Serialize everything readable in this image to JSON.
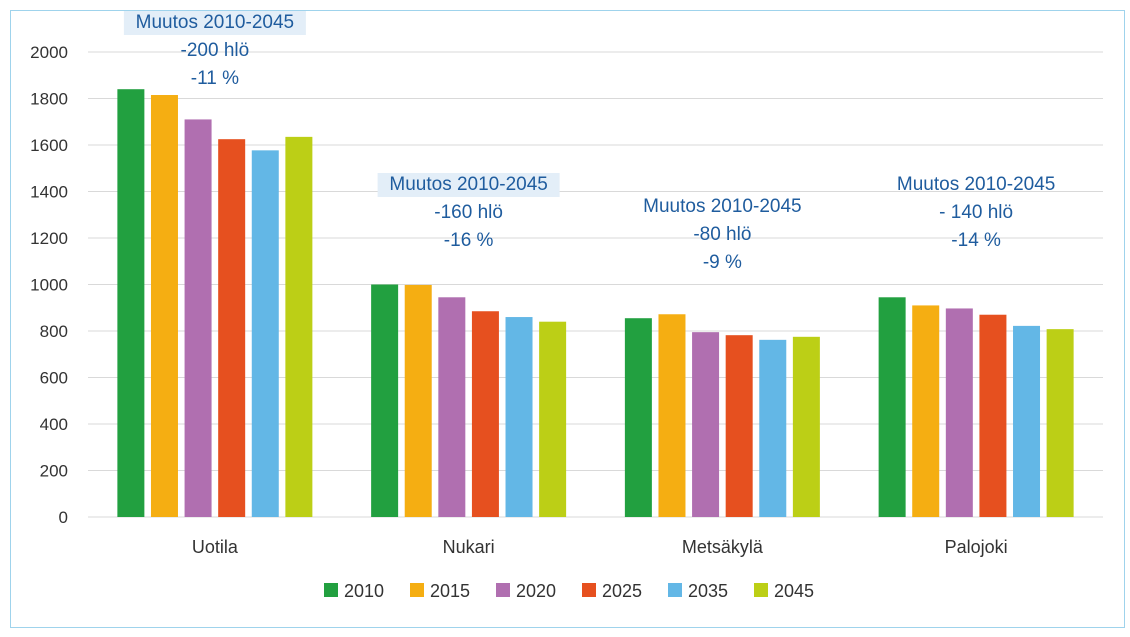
{
  "chart_data": {
    "type": "bar",
    "categories": [
      "Uotila",
      "Nukari",
      "Metsäkylä",
      "Palojoki"
    ],
    "series": [
      {
        "name": "2010",
        "color": "#22a040",
        "values": [
          1840,
          1000,
          855,
          945
        ]
      },
      {
        "name": "2015",
        "color": "#f5ae12",
        "values": [
          1815,
          998,
          872,
          910
        ]
      },
      {
        "name": "2020",
        "color": "#b06fb0",
        "values": [
          1710,
          945,
          795,
          897
        ]
      },
      {
        "name": "2025",
        "color": "#e6501f",
        "values": [
          1625,
          885,
          782,
          870
        ]
      },
      {
        "name": "2035",
        "color": "#63b7e6",
        "values": [
          1577,
          860,
          762,
          822
        ]
      },
      {
        "name": "2045",
        "color": "#bccf16",
        "values": [
          1635,
          840,
          775,
          808
        ]
      }
    ],
    "ylim": [
      0,
      2000
    ],
    "yticks": [
      0,
      200,
      400,
      600,
      800,
      1000,
      1200,
      1400,
      1600,
      1800,
      2000
    ],
    "grid": true,
    "legend_position": "bottom",
    "annotations": [
      {
        "category": "Uotila",
        "lines": [
          "Muutos 2010-2045",
          "-200 hlö",
          "-11 %"
        ]
      },
      {
        "category": "Nukari",
        "lines": [
          "Muutos 2010-2045",
          "-160 hlö",
          "-16 %"
        ]
      },
      {
        "category": "Metsäkylä",
        "lines": [
          "Muutos 2010-2045",
          "-80 hlö",
          "-9 %"
        ]
      },
      {
        "category": "Palojoki",
        "lines": [
          "Muutos 2010-2045",
          "- 140 hlö",
          "-14 %"
        ]
      }
    ]
  }
}
